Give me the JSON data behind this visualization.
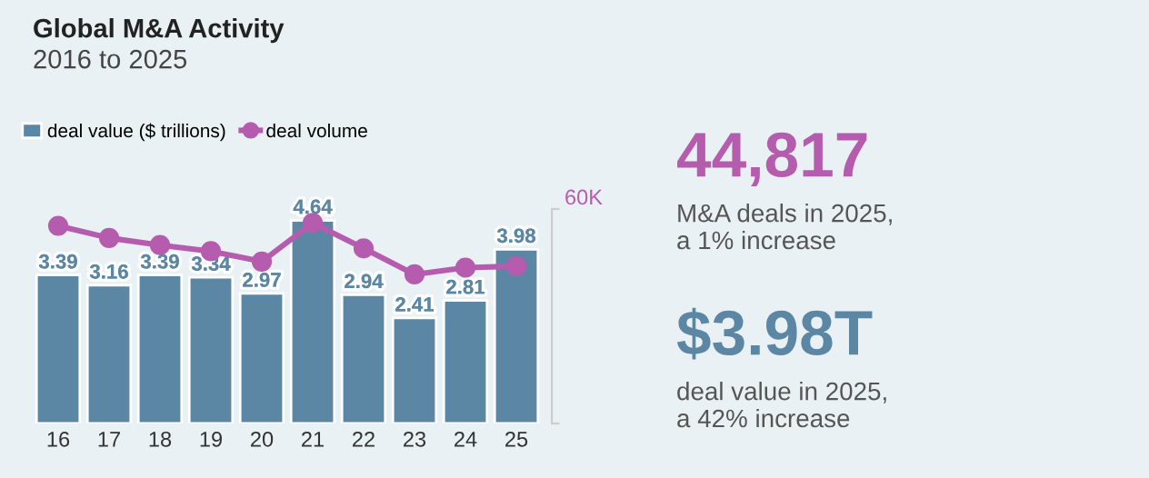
{
  "chart_data": [
    {
      "type": "bar",
      "title": "Global M&A Activity",
      "subtitle": "2016 to 2025",
      "categories": [
        "16",
        "17",
        "18",
        "19",
        "20",
        "21",
        "22",
        "23",
        "24",
        "25"
      ],
      "series": [
        {
          "name": "deal value ($ trillions)",
          "color": "#5b87a4",
          "values": [
            3.39,
            3.16,
            3.39,
            3.34,
            2.97,
            4.64,
            2.94,
            2.41,
            2.81,
            3.98
          ],
          "value_labels": [
            "3.39",
            "3.16",
            "3.39",
            "3.34",
            "2.97",
            "4.64",
            "2.94",
            "2.41",
            "2.81",
            "3.98"
          ]
        },
        {
          "name": "deal volume",
          "type": "line",
          "axis": "y2",
          "color": "#b55cae",
          "marker": "circle",
          "values": [
            55300,
            51900,
            49900,
            48200,
            45300,
            56100,
            49000,
            41700,
            43600,
            44000
          ]
        }
      ],
      "ylim": [
        0,
        4.9
      ],
      "y2lim": [
        0,
        60000
      ],
      "y2ticks": [
        {
          "value": 0,
          "label": null
        },
        {
          "value": 60000,
          "label": "60K"
        }
      ],
      "legend": "top left",
      "grid": false
    },
    {
      "type": "other",
      "annotations": [
        "44,817",
        "M&A deals in 2025,\na 1% increase",
        "$3.98T",
        "deal value in 2025,\na 42% increase"
      ]
    }
  ]
}
